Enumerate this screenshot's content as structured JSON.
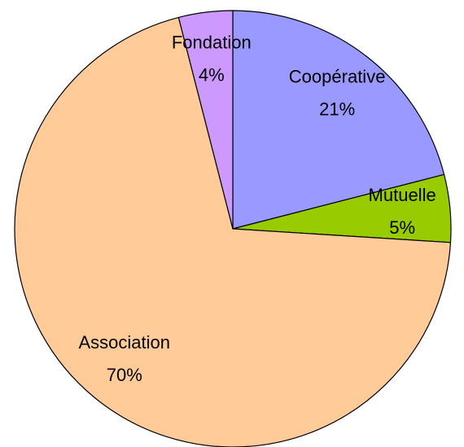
{
  "chart_data": {
    "type": "pie",
    "categories": [
      "Coopérative",
      "Mutuelle",
      "Association",
      "Fondation"
    ],
    "values": [
      21,
      5,
      70,
      4
    ],
    "value_labels": [
      "21%",
      "5%",
      "70%",
      "4%"
    ],
    "colors": [
      "#9999ff",
      "#99cc00",
      "#ffcc99",
      "#cc99ff"
    ]
  }
}
